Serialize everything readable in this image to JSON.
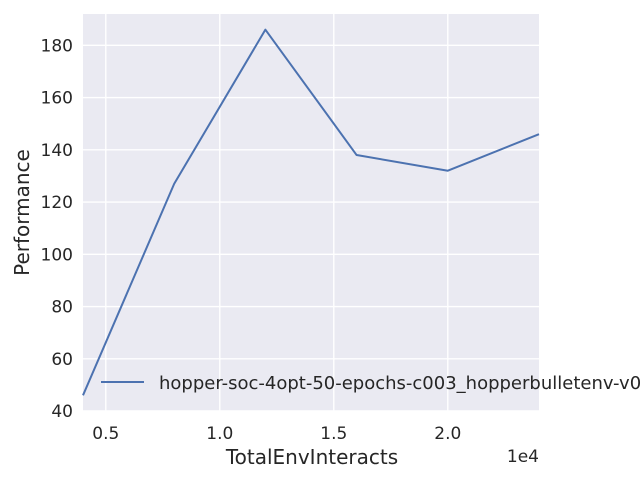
{
  "chart_data": {
    "type": "line",
    "title": "",
    "xlabel": "TotalEnvInteracts",
    "ylabel": "Performance",
    "x_offset_label": "1e4",
    "xlim": [
      4000,
      24000
    ],
    "ylim": [
      40,
      192
    ],
    "x_ticks": [
      5000,
      10000,
      15000,
      20000
    ],
    "x_tick_labels": [
      "0.5",
      "1.0",
      "1.5",
      "2.0"
    ],
    "y_ticks": [
      40,
      60,
      80,
      100,
      120,
      140,
      160,
      180
    ],
    "y_tick_labels": [
      "40",
      "60",
      "80",
      "100",
      "120",
      "140",
      "160",
      "180"
    ],
    "grid": true,
    "legend_position": "lower right",
    "series": [
      {
        "name": "hopper-soc-4opt-50-epochs-c003_hopperbulletenv-v0",
        "color": "#4c72b0",
        "x": [
          4000,
          8000,
          12000,
          16000,
          20000,
          24000
        ],
        "y": [
          46,
          127,
          186,
          138,
          132,
          146
        ]
      }
    ]
  },
  "colors": {
    "plot_background": "#eaeaf2",
    "grid": "#ffffff",
    "text": "#262626"
  }
}
